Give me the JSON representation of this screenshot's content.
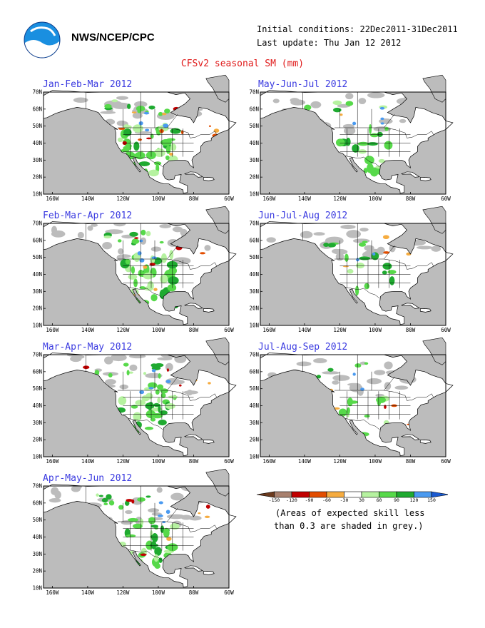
{
  "header": {
    "org": "NWS/NCEP/CPC",
    "initial_conditions": "Initial conditions: 22Dec2011-31Dec2011",
    "last_update": "Last update: Thu Jan 12 2012",
    "title": "CFSv2 seasonal SM (mm)"
  },
  "logo": {
    "name": "noaa-logo"
  },
  "axes": {
    "lat_labels": [
      "70N",
      "60N",
      "50N",
      "40N",
      "30N",
      "20N",
      "10N"
    ],
    "lon_labels": [
      "160W",
      "140W",
      "120W",
      "100W",
      "80W",
      "60W"
    ]
  },
  "panels": [
    {
      "title": "Jan-Feb-Mar 2012",
      "wet": "high",
      "dry": "high"
    },
    {
      "title": "May-Jun-Jul 2012",
      "wet": "med",
      "dry": "low"
    },
    {
      "title": "Feb-Mar-Apr 2012",
      "wet": "high",
      "dry": "med"
    },
    {
      "title": "Jun-Jul-Aug 2012",
      "wet": "low",
      "dry": "low"
    },
    {
      "title": "Mar-Apr-May 2012",
      "wet": "high",
      "dry": "med"
    },
    {
      "title": "Jul-Aug-Sep 2012",
      "wet": "low",
      "dry": "low"
    },
    {
      "title": "Apr-May-Jun 2012",
      "wet": "high",
      "dry": "med"
    }
  ],
  "legend": {
    "ticks": [
      "-150",
      "-120",
      "-90",
      "-60",
      "-30",
      "30",
      "60",
      "90",
      "120",
      "150"
    ],
    "colors": [
      "#6b3a1e",
      "#a8806e",
      "#c10000",
      "#e34d00",
      "#f6ac40",
      "#ffffff",
      "#b6f2a0",
      "#57d94a",
      "#1faa30",
      "#4a9af0",
      "#1a5ad0"
    ],
    "note_line1": "(Areas of expected skill less",
    "note_line2": "than 0.3 are shaded in grey.)"
  },
  "colors": {
    "ocean": "#bcbcbc",
    "land": "#ffffff",
    "title_blue": "#3a3ae0",
    "title_red": "#e01a1a"
  }
}
